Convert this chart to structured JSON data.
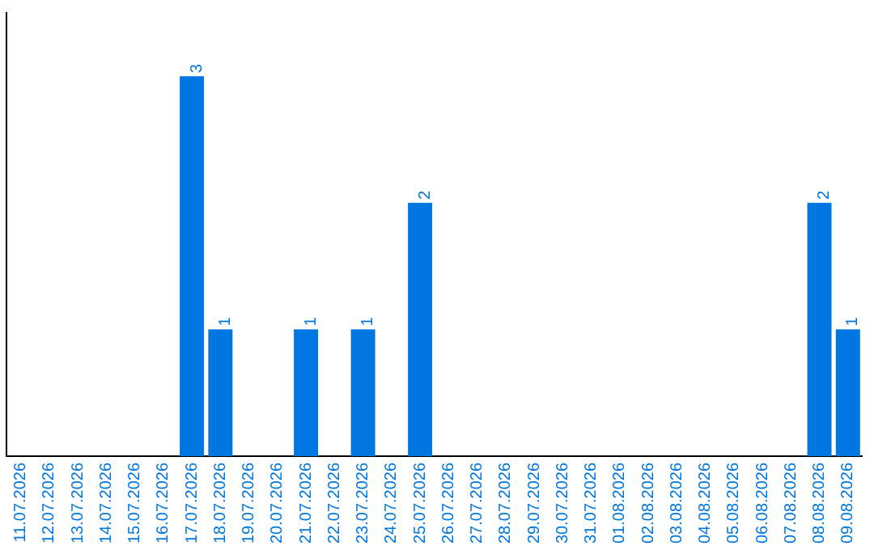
{
  "chart_data": {
    "type": "bar",
    "categories": [
      "11.07.2026",
      "12.07.2026",
      "13.07.2026",
      "14.07.2026",
      "15.07.2026",
      "16.07.2026",
      "17.07.2026",
      "18.07.2026",
      "19.07.2026",
      "20.07.2026",
      "21.07.2026",
      "22.07.2026",
      "23.07.2026",
      "24.07.2026",
      "25.07.2026",
      "26.07.2026",
      "27.07.2026",
      "28.07.2026",
      "29.07.2026",
      "30.07.2026",
      "31.07.2026",
      "01.08.2026",
      "02.08.2026",
      "03.08.2026",
      "04.08.2026",
      "05.08.2026",
      "06.08.2026",
      "07.08.2026",
      "08.08.2026",
      "09.08.2026"
    ],
    "values": [
      0,
      0,
      0,
      0,
      0,
      0,
      3,
      1,
      0,
      0,
      1,
      0,
      1,
      0,
      2,
      0,
      0,
      0,
      0,
      0,
      0,
      0,
      0,
      0,
      0,
      0,
      0,
      0,
      2,
      1
    ],
    "value_labels": [
      null,
      null,
      null,
      null,
      null,
      null,
      "3",
      "1",
      null,
      null,
      "1",
      null,
      "1",
      null,
      "2",
      null,
      null,
      null,
      null,
      null,
      null,
      null,
      null,
      null,
      null,
      null,
      null,
      null,
      "2",
      "1"
    ],
    "color": "#0077e0",
    "tick_labels": "x"
  }
}
